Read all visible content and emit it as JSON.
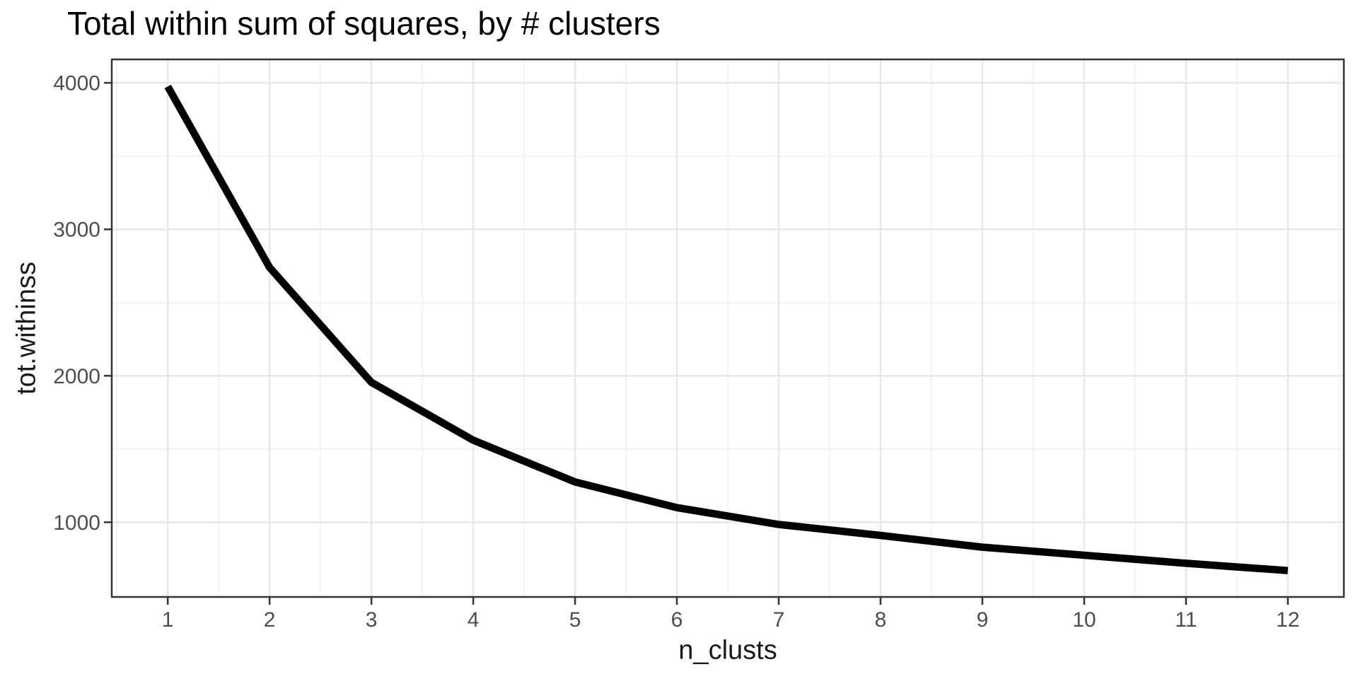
{
  "chart_data": {
    "type": "line",
    "title": "Total within sum of squares, by # clusters",
    "xlabel": "n_clusts",
    "ylabel": "tot.withinss",
    "x": [
      1,
      2,
      3,
      4,
      5,
      6,
      7,
      8,
      9,
      10,
      11,
      12
    ],
    "y": [
      3975,
      2740,
      1955,
      1560,
      1275,
      1100,
      985,
      910,
      830,
      775,
      720,
      670
    ],
    "x_ticks": [
      1,
      2,
      3,
      4,
      5,
      6,
      7,
      8,
      9,
      10,
      11,
      12
    ],
    "y_ticks": [
      1000,
      2000,
      3000,
      4000
    ],
    "x_minor": [
      0.5,
      1.5,
      2.5,
      3.5,
      4.5,
      5.5,
      6.5,
      7.5,
      8.5,
      9.5,
      10.5,
      11.5,
      12.5
    ],
    "y_minor": [
      1500,
      2500,
      3500
    ],
    "xlim": [
      0.45,
      12.55
    ],
    "ylim": [
      490,
      4160
    ],
    "grid": "major+minor",
    "legend": "none",
    "colors": {
      "line": "#000000",
      "panel_border": "#333333",
      "tick_mark": "#333333",
      "grid_major": "#e8e8e8",
      "grid_minor": "#f1f1f1",
      "tick_label": "#4d4d4d",
      "title": "#000000",
      "axis_title": "#1a1a1a",
      "background": "#ffffff"
    },
    "line_width": 10.5
  }
}
